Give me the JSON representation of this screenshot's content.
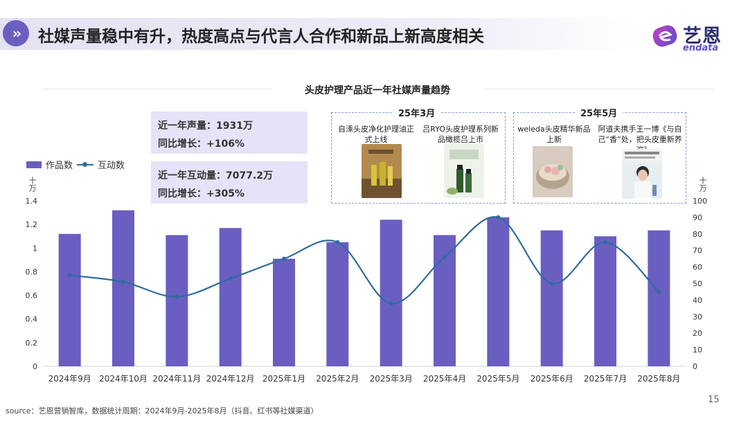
{
  "header": {
    "icon": "double-chevron-right-icon",
    "title": "社媒声量稳中有升，热度高点与代言人合作和新品上新高度相关"
  },
  "logo": {
    "cn": "艺恩",
    "en": "endata"
  },
  "stats": [
    {
      "line1": "近一年声量：1931万",
      "line2": "同比增长：+106%"
    },
    {
      "line1": "近一年互动量：7077.2万",
      "line2": "同比增长：+305%"
    }
  ],
  "events": [
    {
      "title": "25年3月",
      "items": [
        {
          "text": "自溗头皮净化护理油正式上线"
        },
        {
          "text": "吕RYO头皮护理系列新品橄榄吕上市"
        }
      ]
    },
    {
      "title": "25年5月",
      "items": [
        {
          "text": "weleda头皮精华新品上新"
        },
        {
          "text": "阿道夫携手王一博《与自己“香”处，把头皮重新养一遍》"
        }
      ]
    }
  ],
  "chart_data": {
    "type": "bar",
    "title": "头皮护理产品近一年社媒声量趋势",
    "categories": [
      "2024年9月",
      "2024年10月",
      "2024年11月",
      "2024年12月",
      "2025年1月",
      "2025年2月",
      "2025年3月",
      "2025年4月",
      "2025年5月",
      "2025年6月",
      "2025年7月",
      "2025年8月"
    ],
    "series": [
      {
        "name": "作品数",
        "type": "bar",
        "axis": "left",
        "color": "#6a5fc1",
        "values": [
          1.12,
          1.32,
          1.11,
          1.17,
          0.91,
          1.05,
          1.24,
          1.11,
          1.26,
          1.15,
          1.1,
          1.15
        ]
      },
      {
        "name": "互动数",
        "type": "line",
        "axis": "right",
        "color": "#2e6c9e",
        "values": [
          55,
          51,
          42,
          53,
          65,
          75,
          38,
          66,
          90,
          50,
          75,
          45
        ]
      }
    ],
    "left_axis": {
      "unit": "十万",
      "min": 0,
      "max": 1.4,
      "ticks": [
        "0",
        "0.2",
        "0.4",
        "0.6",
        "0.8",
        "1",
        "1.2",
        "1.4"
      ]
    },
    "right_axis": {
      "unit": "十万",
      "min": 0,
      "max": 100,
      "ticks": [
        "0",
        "10",
        "20",
        "30",
        "40",
        "50",
        "60",
        "70",
        "80",
        "90",
        "100"
      ]
    },
    "legend_position": "top-left"
  },
  "footer": {
    "source": "source：艺恩营销智库，数据统计周期：2024年9月-2025年8月（抖音、红书等社媒渠道）",
    "page": "15"
  }
}
